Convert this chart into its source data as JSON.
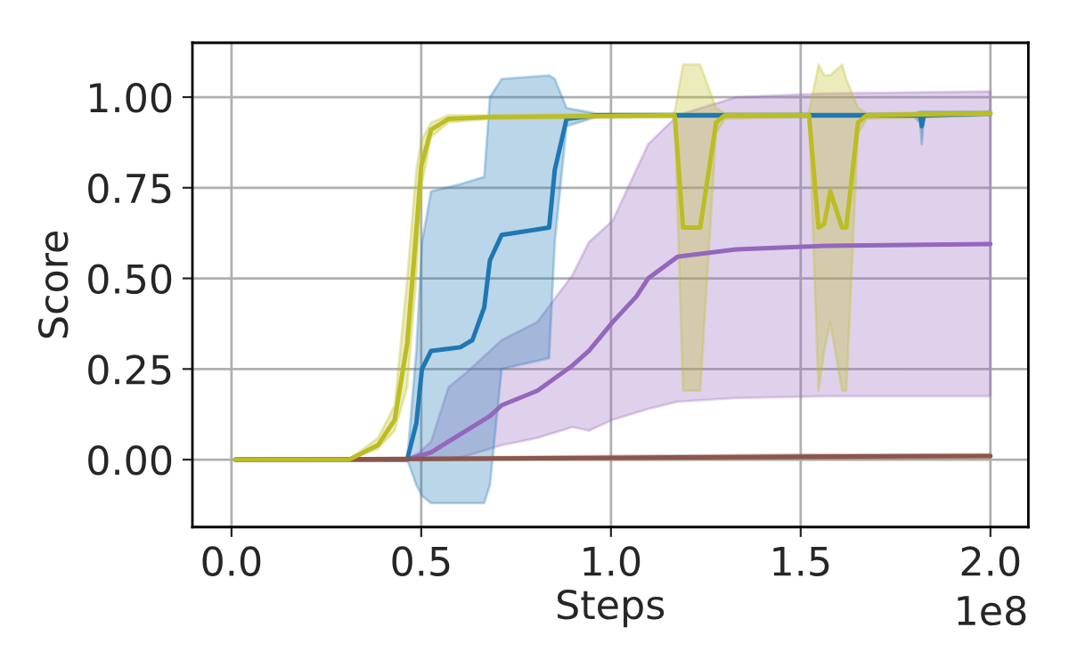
{
  "chart_data": {
    "type": "line",
    "xlabel": "Steps",
    "ylabel": "Score",
    "xlim": [
      -0.103,
      2.1
    ],
    "ylim": [
      -0.186,
      1.15
    ],
    "xticks": [
      {
        "value": 0,
        "label": "0.0"
      },
      0.5,
      {
        "value": 1,
        "label": "1.0"
      },
      1.5,
      {
        "value": 2,
        "label": "2.0"
      }
    ],
    "yticks": [
      {
        "value": 0,
        "label": "0.00"
      },
      {
        "value": 0.25,
        "label": "0.25"
      },
      {
        "value": 0.5,
        "label": "0.50"
      },
      {
        "value": 0.75,
        "label": "0.75"
      },
      {
        "value": 1.0,
        "label": "1.00"
      }
    ],
    "grid": true,
    "annotations": [
      "1e8"
    ],
    "series": [
      {
        "color": "#9467bd",
        "x": [
          0.01,
          0.46,
          0.495,
          0.526,
          0.572,
          0.619,
          0.681,
          0.712,
          0.806,
          0.899,
          0.942,
          1.005,
          1.067,
          1.098,
          1.176,
          1.33,
          1.565,
          2.0
        ],
        "values": [
          0,
          0,
          0.01,
          0.02,
          0.05,
          0.08,
          0.12,
          0.15,
          0.19,
          0.26,
          0.3,
          0.38,
          0.45,
          0.5,
          0.56,
          0.58,
          0.59,
          0.595
        ],
        "lower": [
          0,
          0,
          0,
          0,
          0,
          0.01,
          0.03,
          0.04,
          0.06,
          0.09,
          0.08,
          0.11,
          0.13,
          0.14,
          0.16,
          0.17,
          0.175,
          0.175
        ],
        "upper": [
          0,
          0,
          0.02,
          0.05,
          0.2,
          0.24,
          0.3,
          0.33,
          0.38,
          0.51,
          0.6,
          0.66,
          0.8,
          0.87,
          0.95,
          1.0,
          1.01,
          1.016
        ]
      },
      {
        "color": "#1f77b4",
        "x": [
          0.01,
          0.45,
          0.463,
          0.487,
          0.502,
          0.526,
          0.603,
          0.635,
          0.666,
          0.681,
          0.712,
          0.837,
          0.852,
          0.883,
          0.961,
          1.8,
          1.815,
          1.819,
          1.825,
          2.0
        ],
        "values": [
          0,
          0,
          0,
          0.1,
          0.25,
          0.3,
          0.31,
          0.33,
          0.42,
          0.55,
          0.62,
          0.64,
          0.8,
          0.94,
          0.95,
          0.95,
          0.95,
          0.92,
          0.95,
          0.955
        ],
        "lower": [
          0,
          0,
          0,
          -0.07,
          -0.1,
          -0.12,
          -0.12,
          -0.12,
          -0.12,
          -0.07,
          0.25,
          0.28,
          0.6,
          0.92,
          0.945,
          0.945,
          0.93,
          0.87,
          0.945,
          0.95
        ],
        "upper": [
          0,
          0,
          0,
          0.3,
          0.6,
          0.74,
          0.76,
          0.77,
          0.78,
          1.0,
          1.05,
          1.06,
          1.05,
          0.97,
          0.955,
          0.955,
          0.96,
          0.96,
          0.96,
          0.96
        ]
      },
      {
        "color": "#8c564b",
        "x": [
          0.01,
          0.5,
          1.0,
          1.5,
          2.0
        ],
        "values": [
          0,
          0.002,
          0.005,
          0.008,
          0.01
        ],
        "lower": [
          0,
          0,
          0,
          0.002,
          0.005
        ],
        "upper": [
          0,
          0.005,
          0.01,
          0.014,
          0.015
        ]
      },
      {
        "color": "#bcbd22",
        "x": [
          0.01,
          0.31,
          0.386,
          0.43,
          0.463,
          0.487,
          0.5,
          0.526,
          0.572,
          0.68,
          1.16,
          1.168,
          1.19,
          1.235,
          1.277,
          1.3,
          1.515,
          1.522,
          1.547,
          1.562,
          1.578,
          1.609,
          1.62,
          1.651,
          1.674,
          2.0
        ],
        "values": [
          0,
          0,
          0.04,
          0.11,
          0.32,
          0.63,
          0.81,
          0.91,
          0.94,
          0.945,
          0.95,
          0.95,
          0.64,
          0.64,
          0.93,
          0.95,
          0.95,
          0.95,
          0.64,
          0.65,
          0.74,
          0.64,
          0.64,
          0.93,
          0.95,
          0.955
        ],
        "lower": [
          0,
          0,
          0.03,
          0.08,
          0.2,
          0.5,
          0.75,
          0.89,
          0.93,
          0.94,
          0.945,
          0.94,
          0.19,
          0.19,
          0.9,
          0.94,
          0.945,
          0.94,
          0.19,
          0.3,
          0.38,
          0.19,
          0.19,
          0.9,
          0.94,
          0.95
        ],
        "upper": [
          0,
          0,
          0.06,
          0.15,
          0.5,
          0.8,
          0.88,
          0.93,
          0.95,
          0.95,
          0.955,
          0.96,
          1.09,
          1.09,
          0.97,
          0.955,
          0.955,
          0.96,
          1.09,
          1.06,
          1.06,
          1.09,
          1.05,
          0.97,
          0.955,
          0.96
        ]
      }
    ]
  }
}
